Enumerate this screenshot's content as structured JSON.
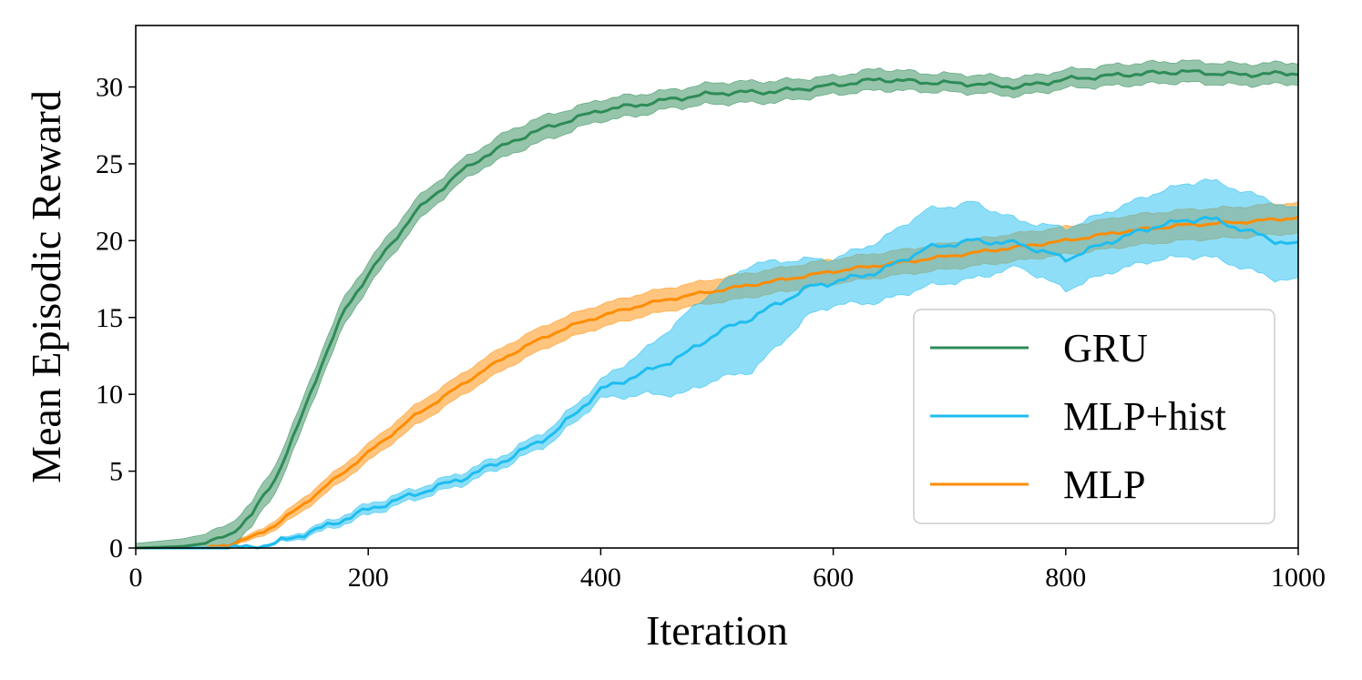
{
  "chart_data": {
    "type": "line",
    "title": "",
    "xlabel": "Iteration",
    "ylabel": "Mean Episodic Reward",
    "xlim": [
      0,
      1000
    ],
    "ylim": [
      0,
      34
    ],
    "xticks": [
      0,
      200,
      400,
      600,
      800,
      1000
    ],
    "yticks": [
      0,
      5,
      10,
      15,
      20,
      25,
      30
    ],
    "grid": false,
    "legend_position": "lower-right",
    "series": [
      {
        "name": "GRU",
        "color": "#2e8b57",
        "points": [
          [
            0,
            0
          ],
          [
            40,
            0.1
          ],
          [
            60,
            0.3
          ],
          [
            80,
            0.8
          ],
          [
            100,
            2.2
          ],
          [
            120,
            4.5
          ],
          [
            140,
            8
          ],
          [
            160,
            12
          ],
          [
            180,
            15.5
          ],
          [
            200,
            17.8
          ],
          [
            220,
            19.8
          ],
          [
            240,
            21.8
          ],
          [
            260,
            23.2
          ],
          [
            280,
            24.5
          ],
          [
            300,
            25.5
          ],
          [
            320,
            26.3
          ],
          [
            340,
            27
          ],
          [
            360,
            27.5
          ],
          [
            380,
            28
          ],
          [
            400,
            28.5
          ],
          [
            430,
            28.8
          ],
          [
            460,
            29.2
          ],
          [
            500,
            29.6
          ],
          [
            550,
            29.7
          ],
          [
            600,
            30.1
          ],
          [
            640,
            30.5
          ],
          [
            680,
            30.3
          ],
          [
            720,
            30.2
          ],
          [
            760,
            30
          ],
          [
            800,
            30.5
          ],
          [
            850,
            30.8
          ],
          [
            900,
            31
          ],
          [
            950,
            30.8
          ],
          [
            1000,
            30.9
          ]
        ],
        "band": [
          0.3,
          0.5,
          0.6,
          0.7,
          0.8,
          0.9,
          0.9,
          0.9,
          0.9,
          0.8,
          0.8,
          0.8,
          0.7,
          0.7,
          0.7,
          0.8,
          0.8,
          0.8,
          0.7,
          0.7,
          0.7,
          0.6,
          0.7,
          0.7,
          0.6,
          0.7,
          0.6,
          0.6,
          0.6,
          0.6,
          0.7,
          0.7,
          0.7,
          0.7
        ]
      },
      {
        "name": "MLP+hist",
        "color": "#1ebdf0",
        "points": [
          [
            0,
            0
          ],
          [
            80,
            0
          ],
          [
            100,
            0.05
          ],
          [
            120,
            0.3
          ],
          [
            140,
            0.8
          ],
          [
            160,
            1.3
          ],
          [
            180,
            1.9
          ],
          [
            200,
            2.5
          ],
          [
            240,
            3.5
          ],
          [
            280,
            4.5
          ],
          [
            320,
            5.8
          ],
          [
            360,
            7.5
          ],
          [
            400,
            10.3
          ],
          [
            440,
            11.5
          ],
          [
            470,
            12.5
          ],
          [
            500,
            14
          ],
          [
            530,
            15
          ],
          [
            560,
            16.2
          ],
          [
            580,
            17
          ],
          [
            600,
            17.3
          ],
          [
            640,
            18
          ],
          [
            680,
            19.5
          ],
          [
            720,
            20
          ],
          [
            760,
            19.8
          ],
          [
            800,
            18.8
          ],
          [
            840,
            20
          ],
          [
            880,
            21
          ],
          [
            920,
            21.5
          ],
          [
            950,
            20.8
          ],
          [
            980,
            20
          ],
          [
            1000,
            19.7
          ]
        ],
        "band": [
          0.05,
          0.05,
          0.05,
          0.1,
          0.2,
          0.25,
          0.3,
          0.35,
          0.35,
          0.4,
          0.4,
          0.5,
          0.6,
          1.5,
          2.5,
          3,
          3.5,
          2.5,
          1.8,
          1.5,
          2,
          2.5,
          2.5,
          1.5,
          2,
          2,
          2.2,
          2.5,
          2.5,
          2.5,
          2.3
        ]
      },
      {
        "name": "MLP",
        "color": "#ff8c00",
        "points": [
          [
            0,
            0
          ],
          [
            60,
            0
          ],
          [
            80,
            0.2
          ],
          [
            100,
            0.7
          ],
          [
            120,
            1.5
          ],
          [
            140,
            2.6
          ],
          [
            160,
            3.8
          ],
          [
            180,
            5
          ],
          [
            200,
            6.2
          ],
          [
            220,
            7.4
          ],
          [
            240,
            8.6
          ],
          [
            260,
            9.6
          ],
          [
            280,
            10.6
          ],
          [
            300,
            11.6
          ],
          [
            320,
            12.5
          ],
          [
            340,
            13.3
          ],
          [
            360,
            14
          ],
          [
            380,
            14.6
          ],
          [
            400,
            15.1
          ],
          [
            440,
            15.9
          ],
          [
            480,
            16.5
          ],
          [
            520,
            17
          ],
          [
            560,
            17.5
          ],
          [
            600,
            18
          ],
          [
            650,
            18.5
          ],
          [
            700,
            19
          ],
          [
            750,
            19.5
          ],
          [
            800,
            20
          ],
          [
            850,
            20.6
          ],
          [
            900,
            21
          ],
          [
            950,
            21.2
          ],
          [
            1000,
            21.5
          ]
        ],
        "band": [
          0.05,
          0.05,
          0.1,
          0.2,
          0.3,
          0.4,
          0.45,
          0.5,
          0.55,
          0.6,
          0.65,
          0.7,
          0.7,
          0.75,
          0.75,
          0.75,
          0.75,
          0.75,
          0.75,
          0.75,
          0.75,
          0.8,
          0.8,
          0.8,
          0.8,
          0.85,
          0.9,
          0.9,
          1.0,
          1.0,
          1.0,
          1.0
        ]
      }
    ]
  }
}
